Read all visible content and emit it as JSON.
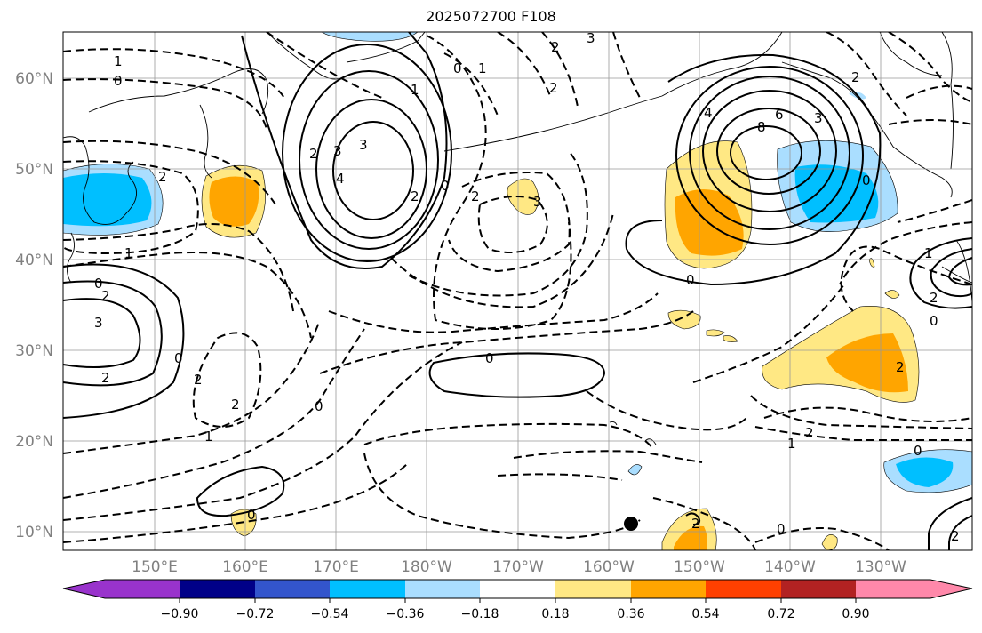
{
  "title": "2025072700 F108",
  "lat_labels": [
    "60°N",
    "50°N",
    "40°N",
    "30°N",
    "20°N",
    "10°N"
  ],
  "lon_labels": [
    "150°E",
    "160°E",
    "170°E",
    "180°W",
    "170°W",
    "160°W",
    "150°W",
    "140°W",
    "130°W"
  ],
  "colorbar": {
    "ticks": [
      "−0.90",
      "−0.72",
      "−0.54",
      "−0.36",
      "−0.18",
      "0.18",
      "0.36",
      "0.54",
      "0.72",
      "0.90"
    ],
    "colors": [
      "#9933cc",
      "#000088",
      "#3355cc",
      "#00bfff",
      "#aadeff",
      "#ffffff",
      "#ffe884",
      "#ffa500",
      "#ff4000",
      "#b22222",
      "#ff88aa"
    ]
  },
  "contour_labels": {
    "l1": "1",
    "l2": "0",
    "l3": "0",
    "l4": "1",
    "l5": "2",
    "l6": "3",
    "l7": "2",
    "l8": "1",
    "l9": "2",
    "l10": "3",
    "l11": "4",
    "l12": "3",
    "l13": "2",
    "l14": "2",
    "l15": "0",
    "l16": "2",
    "l17": "3",
    "l18": "4",
    "l19": "6",
    "l20": "8",
    "l21": "3",
    "l22": "0",
    "l23": "2",
    "l24": "0",
    "l25": "1",
    "l26": "0",
    "l27": "2",
    "l28": "3",
    "l29": "2",
    "l30": "1",
    "l31": "0",
    "l32": "2",
    "l33": "2",
    "l34": "1",
    "l35": "0",
    "l36": "2",
    "l37": "0",
    "l38": "0",
    "l39": "2",
    "l40": "1",
    "l41": "0",
    "l42": "0",
    "l43": "2",
    "l44": "2",
    "l45": "0",
    "l46": "2"
  }
}
